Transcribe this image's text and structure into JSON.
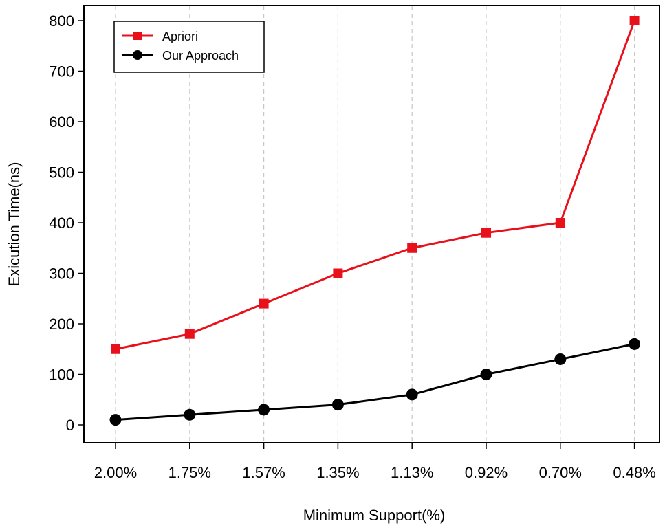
{
  "chart_data": {
    "type": "line",
    "title": "",
    "xlabel": "Minimum Support(%)",
    "ylabel": "Exicution Time(ns)",
    "categories": [
      "2.00%",
      "1.75%",
      "1.57%",
      "1.35%",
      "1.13%",
      "0.92%",
      "0.70%",
      "0.48%"
    ],
    "ylim": [
      0,
      800
    ],
    "yticks": [
      0,
      100,
      200,
      300,
      400,
      500,
      600,
      700,
      800
    ],
    "grid": "vertical dashed",
    "legend_position": "top-left",
    "series": [
      {
        "name": "Apriori",
        "color": "#e8101a",
        "marker": "square",
        "values": [
          150,
          180,
          240,
          300,
          350,
          380,
          400,
          800
        ]
      },
      {
        "name": "Our Approach",
        "color": "#000000",
        "marker": "circle",
        "values": [
          10,
          20,
          30,
          40,
          60,
          100,
          130,
          160
        ]
      }
    ]
  }
}
